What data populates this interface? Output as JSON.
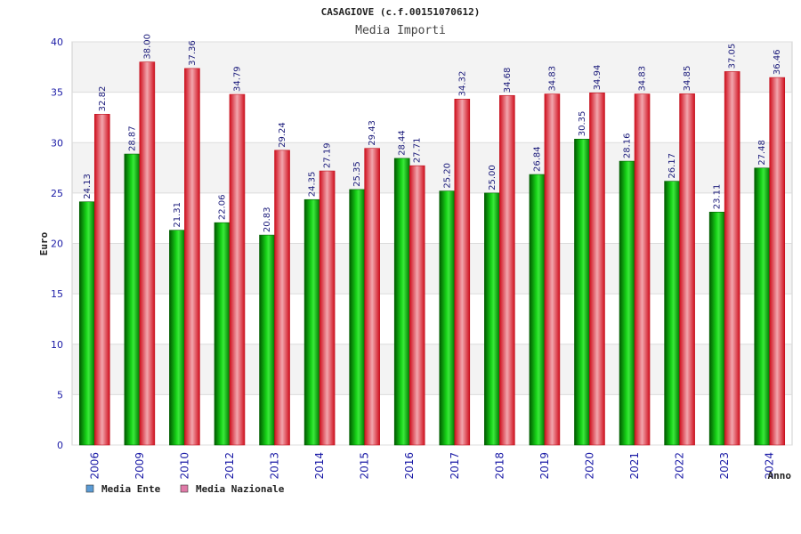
{
  "colors": {
    "ente": "#0fbf0f",
    "nazionale": "#e8202a",
    "legend_ente": "#5b9bd5",
    "legend_nazionale": "#e07aa8",
    "tick_text": "#1a1aa6"
  },
  "chart_data": {
    "type": "bar",
    "title": "CASAGIOVE (c.f.00151070612)",
    "subtitle": "Media Importi",
    "xlabel": "Anno",
    "ylabel": "Euro",
    "ylim": [
      0,
      40
    ],
    "yticks": [
      0,
      5,
      10,
      15,
      20,
      25,
      30,
      35,
      40
    ],
    "grid": true,
    "legend_position": "bottom-left",
    "categories": [
      "2006",
      "2009",
      "2010",
      "2012",
      "2013",
      "2014",
      "2015",
      "2016",
      "2017",
      "2018",
      "2019",
      "2020",
      "2021",
      "2022",
      "2023",
      "2024"
    ],
    "series": [
      {
        "name": "Media Ente",
        "values": [
          24.13,
          28.87,
          21.31,
          22.06,
          20.83,
          24.35,
          25.35,
          28.44,
          25.2,
          25.0,
          26.84,
          30.35,
          28.16,
          26.17,
          23.11,
          27.48
        ],
        "labels": [
          "24.13",
          "28.87",
          "21.31",
          "22.06",
          "20.83",
          "24.35",
          "25.35",
          "28.44",
          "25.20",
          "25.00",
          "26.84",
          "30.35",
          "28.16",
          "26.17",
          "23.11",
          "27.48"
        ]
      },
      {
        "name": "Media Nazionale",
        "values": [
          32.82,
          38.0,
          37.36,
          34.79,
          29.24,
          27.19,
          29.43,
          27.71,
          34.32,
          34.68,
          34.83,
          34.94,
          34.83,
          34.85,
          37.05,
          36.46
        ],
        "labels": [
          "32.82",
          "38.00",
          "37.36",
          "34.79",
          "29.24",
          "27.19",
          "29.43",
          "27.71",
          "34.32",
          "34.68",
          "34.83",
          "34.94",
          "34.83",
          "34.85",
          "37.05",
          "36.46"
        ]
      }
    ]
  }
}
